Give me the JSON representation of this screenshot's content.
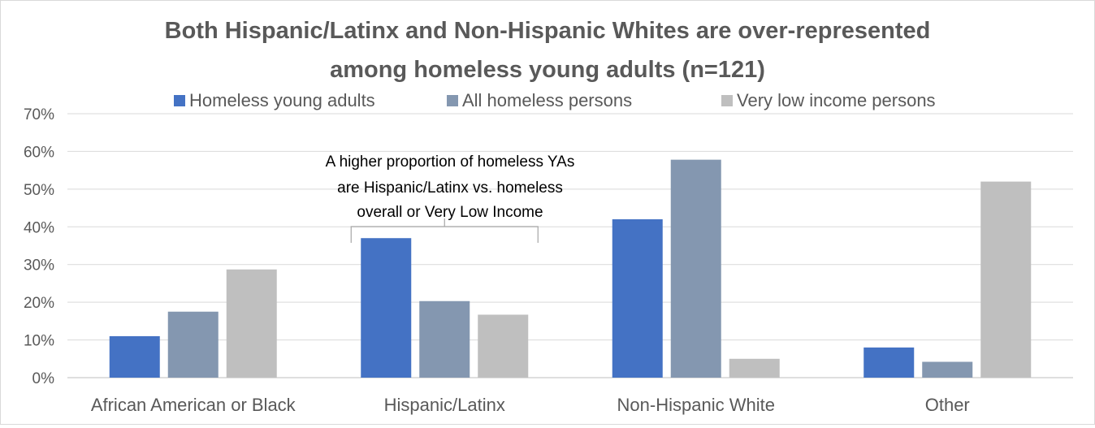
{
  "chart_data": {
    "type": "bar",
    "title": "Both Hispanic/Latinx and Non-Hispanic Whites are over-represented among homeless young adults (n=121)",
    "title_lines": [
      "Both Hispanic/Latinx and Non-Hispanic Whites are over-represented",
      "among homeless young adults (n=121)"
    ],
    "categories": [
      "African American or Black",
      "Hispanic/Latinx",
      "Non-Hispanic White",
      "Other"
    ],
    "series": [
      {
        "name": "Homeless young adults",
        "color": "#4472c4",
        "values": [
          11,
          37,
          42,
          8
        ]
      },
      {
        "name": "All homeless persons",
        "color": "#8497b0",
        "values": [
          17.5,
          20.3,
          57.8,
          4.2
        ]
      },
      {
        "name": "Very low income persons",
        "color": "#bfbfbf",
        "values": [
          28.7,
          16.7,
          5,
          52
        ]
      }
    ],
    "y_unit": "%",
    "ylim": [
      0,
      70
    ],
    "yticks": [
      0,
      10,
      20,
      30,
      40,
      50,
      60,
      70
    ],
    "ytick_labels": [
      "0%",
      "10%",
      "20%",
      "30%",
      "40%",
      "50%",
      "60%",
      "70%"
    ],
    "grid": true,
    "legend_position": "top",
    "annotation": {
      "category": "Hispanic/Latinx",
      "lines": [
        "A higher proportion of homeless YAs",
        "are Hispanic/Latinx vs. homeless",
        "overall or Very Low Income"
      ]
    }
  }
}
